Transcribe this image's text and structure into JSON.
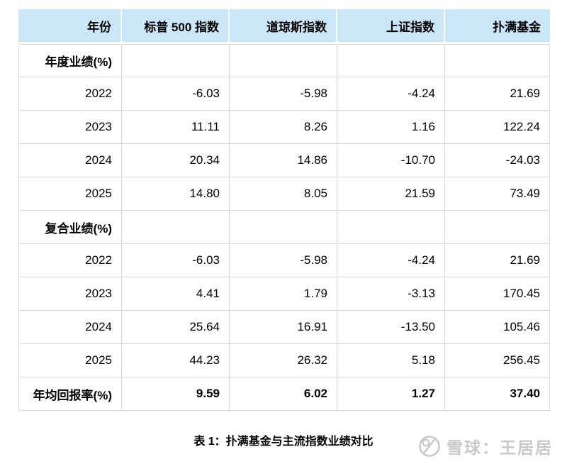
{
  "table": {
    "header": {
      "year_col": "年份",
      "columns": [
        "标普 500 指数",
        "道琼斯指数",
        "上证指数",
        "扑满基金"
      ]
    },
    "sections": [
      {
        "label": "年度业绩(%)",
        "rows": [
          {
            "year": "2022",
            "values": [
              "-6.03",
              "-5.98",
              "-4.24",
              "21.69"
            ]
          },
          {
            "year": "2023",
            "values": [
              "11.11",
              "8.26",
              "1.16",
              "122.24"
            ]
          },
          {
            "year": "2024",
            "values": [
              "20.34",
              "14.86",
              "-10.70",
              "-24.03"
            ]
          },
          {
            "year": "2025",
            "values": [
              "14.80",
              "8.05",
              "21.59",
              "73.49"
            ]
          }
        ]
      },
      {
        "label": "复合业绩(%)",
        "rows": [
          {
            "year": "2022",
            "values": [
              "-6.03",
              "-5.98",
              "-4.24",
              "21.69"
            ]
          },
          {
            "year": "2023",
            "values": [
              "4.41",
              "1.79",
              "-3.13",
              "170.45"
            ]
          },
          {
            "year": "2024",
            "values": [
              "25.64",
              "16.91",
              "-13.50",
              "105.46"
            ]
          },
          {
            "year": "2025",
            "values": [
              "44.23",
              "26.32",
              "5.18",
              "256.45"
            ]
          }
        ]
      }
    ],
    "summary": {
      "label": "年均回报率(%)",
      "values": [
        "9.59",
        "6.02",
        "1.27",
        "37.40"
      ]
    }
  },
  "caption": "表 1：扑满基金与主流指数业绩对比",
  "watermark": {
    "icon": "xueqiu-snowball-icon",
    "text": "雪球：王居居"
  },
  "colors": {
    "header_bg": "#cbe6f7",
    "grid": "#d9d9d9",
    "text": "#000000",
    "watermark": "#c9c9c9"
  },
  "chart_data": {
    "type": "table",
    "title": "表 1：扑满基金与主流指数业绩对比",
    "columns": [
      "年份",
      "标普 500 指数",
      "道琼斯指数",
      "上证指数",
      "扑满基金"
    ],
    "sections": [
      {
        "name": "年度业绩(%)",
        "rows": [
          [
            2022,
            -6.03,
            -5.98,
            -4.24,
            21.69
          ],
          [
            2023,
            11.11,
            8.26,
            1.16,
            122.24
          ],
          [
            2024,
            20.34,
            14.86,
            -10.7,
            -24.03
          ],
          [
            2025,
            14.8,
            8.05,
            21.59,
            73.49
          ]
        ]
      },
      {
        "name": "复合业绩(%)",
        "rows": [
          [
            2022,
            -6.03,
            -5.98,
            -4.24,
            21.69
          ],
          [
            2023,
            4.41,
            1.79,
            -3.13,
            170.45
          ],
          [
            2024,
            25.64,
            16.91,
            -13.5,
            105.46
          ],
          [
            2025,
            44.23,
            26.32,
            5.18,
            256.45
          ]
        ]
      }
    ],
    "summary_row": {
      "name": "年均回报率(%)",
      "values": [
        9.59,
        6.02,
        1.27,
        37.4
      ]
    }
  }
}
